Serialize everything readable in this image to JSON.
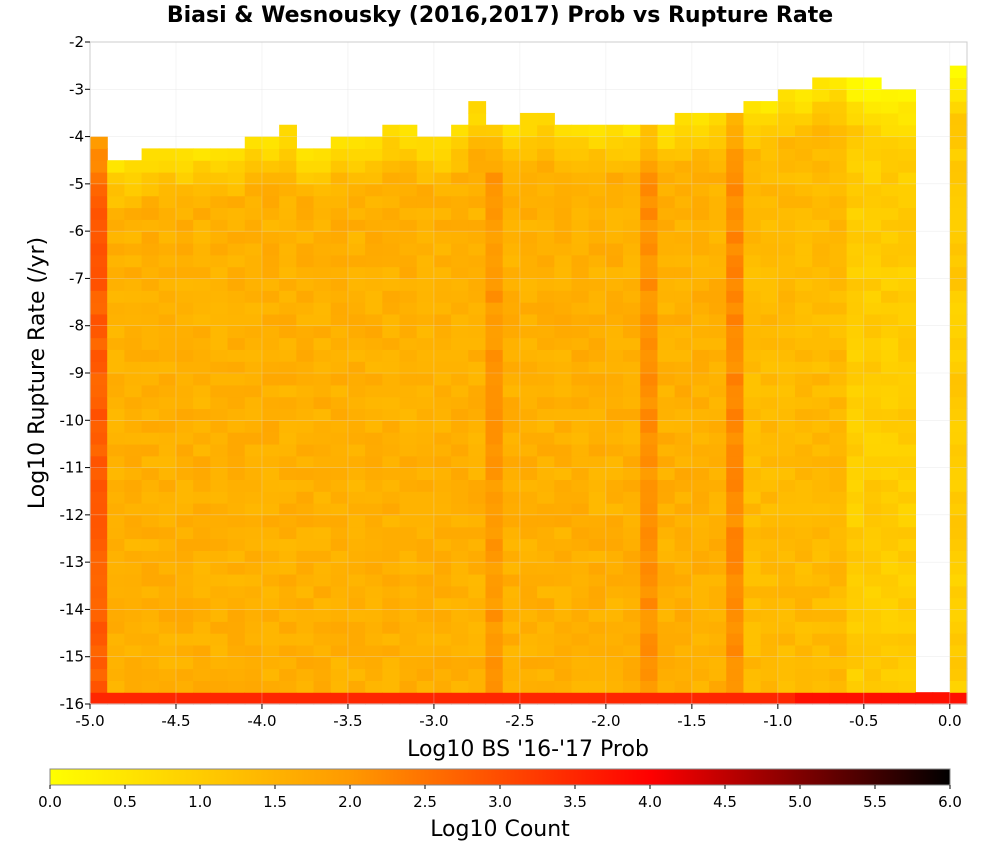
{
  "chart_data": {
    "type": "heatmap",
    "title": "Biasi & Wesnousky (2016,2017) Prob vs Rupture Rate",
    "xlabel": "Log10 BS '16-'17 Prob",
    "ylabel": "Log10 Rupture Rate (/yr)",
    "xlim": [
      -5.0,
      0.1
    ],
    "ylim": [
      -16,
      -2
    ],
    "x_ticks": [
      "-5.0",
      "-4.5",
      "-4.0",
      "-3.5",
      "-3.0",
      "-2.5",
      "-2.0",
      "-1.5",
      "-1.0",
      "-0.5",
      "0.0"
    ],
    "x_tick_values": [
      -5.0,
      -4.5,
      -4.0,
      -3.5,
      -3.0,
      -2.5,
      -2.0,
      -1.5,
      -1.0,
      -0.5,
      0.0
    ],
    "y_ticks": [
      "-2",
      "-3",
      "-4",
      "-5",
      "-6",
      "-7",
      "-8",
      "-9",
      "-10",
      "-11",
      "-12",
      "-13",
      "-14",
      "-15",
      "-16"
    ],
    "y_tick_values": [
      -2,
      -3,
      -4,
      -5,
      -6,
      -7,
      -8,
      -9,
      -10,
      -11,
      -12,
      -13,
      -14,
      -15,
      -16
    ],
    "bin_size_x": 0.1,
    "bin_size_y": 0.25,
    "grid": true,
    "colorbar": {
      "label": "Log10 Count",
      "range": [
        0.0,
        6.0
      ],
      "ticks": [
        "0.0",
        "0.5",
        "1.0",
        "1.5",
        "2.0",
        "2.5",
        "3.0",
        "3.5",
        "4.0",
        "4.5",
        "5.0",
        "5.5",
        "6.0"
      ],
      "tick_values": [
        0.0,
        0.5,
        1.0,
        1.5,
        2.0,
        2.5,
        3.0,
        3.5,
        4.0,
        4.5,
        5.0,
        5.5,
        6.0
      ],
      "colors": [
        "#ffff00",
        "#ff9900",
        "#ff0000",
        "#000000"
      ]
    },
    "upper_rate_edge_by_prob": [
      {
        "prob": -5.0,
        "rate": -4.0
      },
      {
        "prob": -4.9,
        "rate": -4.5
      },
      {
        "prob": -4.8,
        "rate": -4.5
      },
      {
        "prob": -4.7,
        "rate": -4.25
      },
      {
        "prob": -4.5,
        "rate": -4.25
      },
      {
        "prob": -4.3,
        "rate": -4.25
      },
      {
        "prob": -4.1,
        "rate": -4.0
      },
      {
        "prob": -3.9,
        "rate": -3.75
      },
      {
        "prob": -3.7,
        "rate": -4.25
      },
      {
        "prob": -3.5,
        "rate": -4.0
      },
      {
        "prob": -3.3,
        "rate": -3.75
      },
      {
        "prob": -3.1,
        "rate": -4.0
      },
      {
        "prob": -2.9,
        "rate": -3.75
      },
      {
        "prob": -2.8,
        "rate": -3.25
      },
      {
        "prob": -2.6,
        "rate": -3.75
      },
      {
        "prob": -2.5,
        "rate": -3.5
      },
      {
        "prob": -2.3,
        "rate": -3.75
      },
      {
        "prob": -2.1,
        "rate": -3.75
      },
      {
        "prob": -1.9,
        "rate": -3.75
      },
      {
        "prob": -1.7,
        "rate": -3.75
      },
      {
        "prob": -1.5,
        "rate": -3.5
      },
      {
        "prob": -1.3,
        "rate": -3.5
      },
      {
        "prob": -1.1,
        "rate": -3.25
      },
      {
        "prob": -0.9,
        "rate": -3.0
      },
      {
        "prob": -0.7,
        "rate": -2.75
      },
      {
        "prob": -0.5,
        "rate": -2.75
      },
      {
        "prob": -0.3,
        "rate": -3.0
      },
      {
        "prob": -0.2,
        "rate": -3.0
      },
      {
        "prob": 0.1,
        "rate": -2.5
      }
    ],
    "high_count_columns": [
      {
        "prob": -5.0,
        "log10_count": 2.8
      },
      {
        "prob": -1.3,
        "log10_count": 2.2
      },
      {
        "prob": -1.8,
        "log10_count": 2.1
      },
      {
        "prob": -2.7,
        "log10_count": 2.0
      }
    ],
    "bottom_row": {
      "rate": -16.0,
      "log10_count": 3.5
    },
    "empty_prob_bins": [
      -0.2,
      -0.1
    ]
  }
}
